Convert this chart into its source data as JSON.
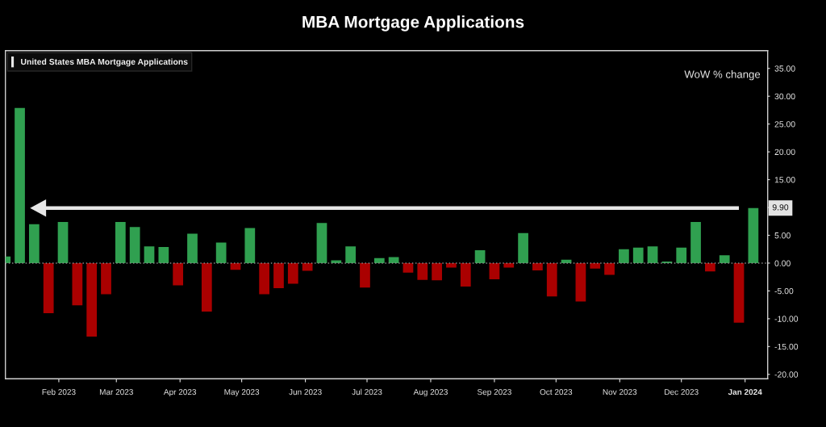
{
  "chart_data": {
    "type": "bar",
    "title": "MBA Mortgage Applications",
    "annotations": [
      "WoW % change",
      {
        "text": "9.90",
        "x": "2024-01-05",
        "y": 9.9
      }
    ],
    "x": [
      "2023-01-06",
      "2023-01-13",
      "2023-01-20",
      "2023-01-27",
      "2023-02-03",
      "2023-02-10",
      "2023-02-17",
      "2023-02-24",
      "2023-03-03",
      "2023-03-10",
      "2023-03-17",
      "2023-03-24",
      "2023-03-31",
      "2023-04-07",
      "2023-04-14",
      "2023-04-21",
      "2023-04-28",
      "2023-05-05",
      "2023-05-12",
      "2023-05-19",
      "2023-05-26",
      "2023-06-02",
      "2023-06-09",
      "2023-06-16",
      "2023-06-23",
      "2023-06-30",
      "2023-07-07",
      "2023-07-14",
      "2023-07-21",
      "2023-07-28",
      "2023-08-04",
      "2023-08-11",
      "2023-08-18",
      "2023-08-25",
      "2023-09-01",
      "2023-09-08",
      "2023-09-15",
      "2023-09-22",
      "2023-09-29",
      "2023-10-06",
      "2023-10-13",
      "2023-10-20",
      "2023-10-27",
      "2023-11-03",
      "2023-11-10",
      "2023-11-17",
      "2023-11-24",
      "2023-12-01",
      "2023-12-08",
      "2023-12-15",
      "2023-12-22",
      "2023-12-29",
      "2024-01-05"
    ],
    "series": [
      {
        "name": "United States MBA Mortgage Applications",
        "values": [
          1.2,
          27.9,
          7.0,
          -9.0,
          7.4,
          -7.6,
          -13.2,
          -5.6,
          7.4,
          6.5,
          3.0,
          2.9,
          -4.0,
          5.3,
          -8.7,
          3.7,
          -1.2,
          6.3,
          -5.6,
          -4.5,
          -3.7,
          -1.4,
          7.2,
          0.5,
          3.0,
          -4.4,
          0.9,
          1.1,
          -1.7,
          -3.0,
          -3.1,
          -0.8,
          -4.2,
          2.3,
          -2.9,
          -0.8,
          5.4,
          -1.3,
          -6.0,
          0.6,
          -6.9,
          -1.0,
          -2.1,
          2.5,
          2.8,
          3.0,
          0.3,
          2.8,
          7.4,
          -1.5,
          1.4,
          -10.7,
          9.9
        ],
        "colors": [
          "#30a050",
          "#30a050",
          "#30a050",
          "#aa0000",
          "#30a050",
          "#aa0000",
          "#aa0000",
          "#aa0000",
          "#30a050",
          "#30a050",
          "#30a050",
          "#30a050",
          "#aa0000",
          "#30a050",
          "#aa0000",
          "#30a050",
          "#aa0000",
          "#30a050",
          "#aa0000",
          "#aa0000",
          "#aa0000",
          "#aa0000",
          "#30a050",
          "#30a050",
          "#30a050",
          "#aa0000",
          "#30a050",
          "#30a050",
          "#aa0000",
          "#aa0000",
          "#aa0000",
          "#aa0000",
          "#aa0000",
          "#30a050",
          "#aa0000",
          "#aa0000",
          "#30a050",
          "#aa0000",
          "#aa0000",
          "#30a050",
          "#aa0000",
          "#aa0000",
          "#aa0000",
          "#30a050",
          "#30a050",
          "#30a050",
          "#30a050",
          "#30a050",
          "#30a050",
          "#aa0000",
          "#30a050",
          "#aa0000",
          "#30a050"
        ]
      }
    ],
    "xlim": [
      "2023-01-06",
      "2024-01-12"
    ],
    "xticks": [
      {
        "value": "2023-02-01",
        "label": "Feb 2023"
      },
      {
        "value": "2023-03-01",
        "label": "Mar 2023"
      },
      {
        "value": "2023-04-01",
        "label": "Apr 2023"
      },
      {
        "value": "2023-05-01",
        "label": "May 2023"
      },
      {
        "value": "2023-06-01",
        "label": "Jun 2023"
      },
      {
        "value": "2023-07-01",
        "label": "Jul 2023"
      },
      {
        "value": "2023-08-01",
        "label": "Aug 2023"
      },
      {
        "value": "2023-09-01",
        "label": "Sep 2023"
      },
      {
        "value": "2023-10-01",
        "label": "Oct 2023"
      },
      {
        "value": "2023-11-01",
        "label": "Nov 2023"
      },
      {
        "value": "2023-12-01",
        "label": "Dec 2023"
      },
      {
        "value": "2024-01-01",
        "label": "Jan 2024"
      }
    ],
    "ylim": [
      -20.8,
      38.2
    ],
    "yticks": [
      {
        "value": -20,
        "label": "-20.00"
      },
      {
        "value": -15,
        "label": "-15.00"
      },
      {
        "value": -10,
        "label": "-10.00"
      },
      {
        "value": -5,
        "label": "-5.00"
      },
      {
        "value": 0,
        "label": "0.00"
      },
      {
        "value": 5,
        "label": "5.00"
      },
      {
        "value": 10,
        "label": null
      },
      {
        "value": 15,
        "label": "15.00"
      },
      {
        "value": 20,
        "label": "20.00"
      },
      {
        "value": 25,
        "label": "25.00"
      },
      {
        "value": 30,
        "label": "30.00"
      },
      {
        "value": 35,
        "label": "35.00"
      }
    ],
    "ref_lines": [
      {
        "axis": "y",
        "value": 0,
        "color": "#8c8c8c",
        "line_style": "dotted"
      }
    ],
    "legend": "top left"
  }
}
